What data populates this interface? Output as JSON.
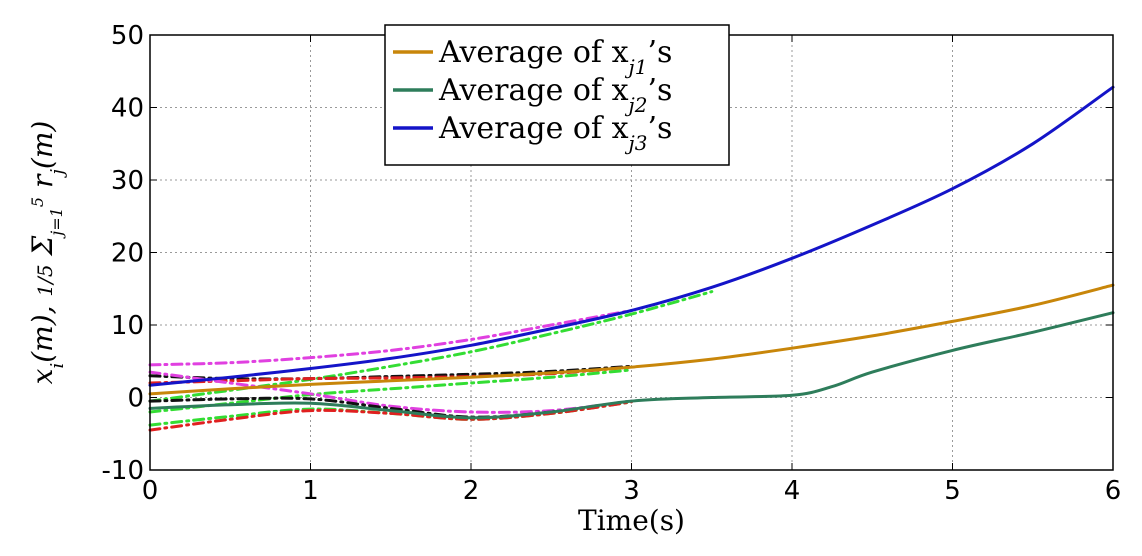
{
  "chart_data": {
    "type": "line",
    "title": "",
    "xlabel": "Time(s)",
    "ylabel": "x_i(m),  (1/5) Σ_{j=1}^{5} r_j(m)",
    "xlim": [
      0,
      6
    ],
    "ylim": [
      -10,
      50
    ],
    "xticks": [
      0,
      1,
      2,
      3,
      4,
      5,
      6
    ],
    "yticks": [
      -10,
      0,
      10,
      20,
      30,
      40,
      50
    ],
    "xtick_labels": [
      "0",
      "1",
      "2",
      "3",
      "4",
      "5",
      "6"
    ],
    "ytick_labels": [
      "-10",
      "0",
      "10",
      "20",
      "30",
      "40",
      "50"
    ],
    "grid": true,
    "legend_position": "top-center",
    "series": [
      {
        "name": "Average of x_{j1}'s",
        "legend_label": "Average of x",
        "legend_sub": "j1",
        "legend_suffix": "’s",
        "color": "#c8860a",
        "style": "solid",
        "in_legend": true,
        "x": [
          0,
          0.5,
          1,
          1.5,
          2,
          2.5,
          3,
          3.5,
          4,
          4.5,
          5,
          5.5,
          6
        ],
        "y": [
          0.5,
          1.2,
          1.8,
          2.3,
          2.8,
          3.4,
          4.2,
          5.3,
          6.8,
          8.5,
          10.5,
          12.7,
          15.5
        ]
      },
      {
        "name": "Average of x_{j2}'s",
        "legend_label": "Average of x",
        "legend_sub": "j2",
        "legend_suffix": "’s",
        "color": "#2e7d5b",
        "style": "solid",
        "in_legend": true,
        "x": [
          0,
          0.5,
          1,
          1.5,
          2,
          2.5,
          3,
          3.5,
          4,
          4.25,
          4.5,
          5,
          5.5,
          6
        ],
        "y": [
          -1.5,
          -1.0,
          -0.8,
          -1.8,
          -2.8,
          -2.0,
          -0.5,
          0.0,
          0.3,
          1.5,
          3.5,
          6.5,
          9.0,
          11.7
        ]
      },
      {
        "name": "Average of x_{j3}'s",
        "legend_label": "Average of x",
        "legend_sub": "j3",
        "legend_suffix": "’s",
        "color": "#1414c8",
        "style": "solid",
        "in_legend": true,
        "x": [
          0,
          0.5,
          1,
          1.5,
          2,
          2.5,
          3,
          3.5,
          4,
          4.5,
          5,
          5.5,
          6
        ],
        "y": [
          1.7,
          2.8,
          4.0,
          5.4,
          7.2,
          9.5,
          12.0,
          15.2,
          19.2,
          23.8,
          28.8,
          35.0,
          42.8
        ]
      },
      {
        "name": "reference upper (magenta)",
        "color": "#e040e0",
        "style": "dashdot",
        "in_legend": false,
        "x": [
          0,
          0.5,
          1,
          1.5,
          2,
          2.5,
          3
        ],
        "y": [
          4.5,
          4.8,
          5.5,
          6.5,
          8.0,
          10.0,
          12.0
        ]
      },
      {
        "name": "reference upper (green)",
        "color": "#33dd33",
        "style": "dashdot",
        "in_legend": false,
        "x": [
          0,
          0.5,
          1,
          1.5,
          2,
          2.5,
          3,
          3.5
        ],
        "y": [
          -0.5,
          1.0,
          2.5,
          4.3,
          6.3,
          8.8,
          11.5,
          14.6
        ]
      },
      {
        "name": "reference middle (black)",
        "color": "#111111",
        "style": "dashdot",
        "in_legend": false,
        "x": [
          0,
          0.5,
          1,
          1.5,
          2,
          2.5,
          3
        ],
        "y": [
          3.0,
          2.6,
          2.6,
          2.9,
          3.2,
          3.6,
          4.3
        ]
      },
      {
        "name": "reference middle (red)",
        "color": "#e02020",
        "style": "dashdot",
        "in_legend": false,
        "x": [
          0,
          0.5,
          1,
          1.5,
          2,
          2.5,
          3
        ],
        "y": [
          2.0,
          2.3,
          2.6,
          2.7,
          2.9,
          3.3,
          4.2
        ]
      },
      {
        "name": "reference middle (green)",
        "color": "#33dd33",
        "style": "dashdot",
        "in_legend": false,
        "x": [
          0,
          0.5,
          1,
          1.5,
          2,
          2.5,
          3
        ],
        "y": [
          -2.0,
          -0.8,
          0.4,
          1.2,
          2.0,
          2.8,
          3.8
        ]
      },
      {
        "name": "reference lower (magenta)",
        "color": "#e040e0",
        "style": "dashdot",
        "in_legend": false,
        "x": [
          0,
          0.5,
          1,
          1.5,
          2,
          2.5,
          3
        ],
        "y": [
          3.5,
          2.0,
          0.5,
          -1.2,
          -2.0,
          -1.8,
          -0.5
        ]
      },
      {
        "name": "reference lower (black)",
        "color": "#111111",
        "style": "dashdot",
        "in_legend": false,
        "x": [
          0,
          0.5,
          1,
          1.5,
          2,
          2.5,
          3
        ],
        "y": [
          -0.5,
          -0.2,
          -0.2,
          -1.5,
          -2.7,
          -2.0,
          -0.5
        ]
      },
      {
        "name": "reference lower (green)",
        "color": "#33dd33",
        "style": "dashdot",
        "in_legend": false,
        "x": [
          0,
          0.5,
          1,
          1.5,
          2,
          2.5,
          3
        ],
        "y": [
          -3.8,
          -2.6,
          -1.6,
          -2.2,
          -3.0,
          -2.2,
          -0.6
        ]
      },
      {
        "name": "reference lower (red)",
        "color": "#e02020",
        "style": "dashdot",
        "in_legend": false,
        "x": [
          0,
          0.5,
          1,
          1.5,
          2,
          2.5,
          3
        ],
        "y": [
          -4.5,
          -3.0,
          -1.8,
          -2.2,
          -3.0,
          -2.2,
          -0.6
        ]
      }
    ]
  }
}
